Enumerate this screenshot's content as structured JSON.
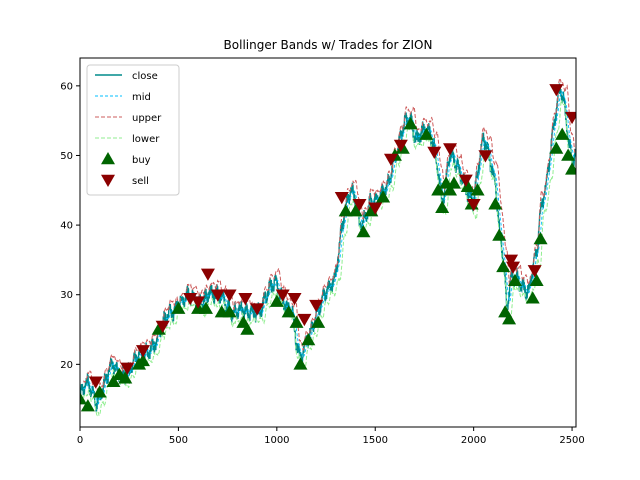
{
  "chart_data": {
    "type": "line",
    "title": "Bollinger Bands w/ Trades for ZION",
    "xlabel": "",
    "ylabel": "",
    "xlim": [
      0,
      2520
    ],
    "ylim": [
      11,
      64
    ],
    "x_ticks": [
      0,
      500,
      1000,
      1500,
      2000,
      2500
    ],
    "y_ticks": [
      20,
      30,
      40,
      50,
      60
    ],
    "legend": {
      "placement": "top-left",
      "entries": [
        "close",
        "mid",
        "upper",
        "lower",
        "buy",
        "sell"
      ]
    },
    "colors": {
      "close": "#008b8b",
      "mid": "#00bfff",
      "upper": "#cd5c5c",
      "lower": "#90ee90",
      "buy": "#006400",
      "sell": "#8b0000"
    },
    "close_anchors": [
      [
        0,
        15.5
      ],
      [
        40,
        16.5
      ],
      [
        80,
        15
      ],
      [
        120,
        17.5
      ],
      [
        160,
        19
      ],
      [
        200,
        18.5
      ],
      [
        240,
        19.5
      ],
      [
        280,
        20
      ],
      [
        320,
        21
      ],
      [
        360,
        23
      ],
      [
        400,
        24.5
      ],
      [
        440,
        26
      ],
      [
        480,
        28
      ],
      [
        500,
        30
      ],
      [
        540,
        29.5
      ],
      [
        580,
        28.5
      ],
      [
        620,
        29.5
      ],
      [
        650,
        31
      ],
      [
        680,
        29.5
      ],
      [
        720,
        29
      ],
      [
        760,
        28.5
      ],
      [
        800,
        28
      ],
      [
        840,
        26.5
      ],
      [
        880,
        28
      ],
      [
        920,
        28.5
      ],
      [
        960,
        30
      ],
      [
        1000,
        31.5
      ],
      [
        1040,
        29.5
      ],
      [
        1080,
        27
      ],
      [
        1100,
        22
      ],
      [
        1120,
        20
      ],
      [
        1150,
        24
      ],
      [
        1180,
        26
      ],
      [
        1210,
        27.5
      ],
      [
        1240,
        29
      ],
      [
        1270,
        31
      ],
      [
        1300,
        34
      ],
      [
        1330,
        40
      ],
      [
        1360,
        43
      ],
      [
        1380,
        44
      ],
      [
        1400,
        43.5
      ],
      [
        1420,
        41
      ],
      [
        1440,
        41.5
      ],
      [
        1470,
        43
      ],
      [
        1500,
        42.5
      ],
      [
        1530,
        44
      ],
      [
        1560,
        46.5
      ],
      [
        1590,
        49
      ],
      [
        1620,
        51
      ],
      [
        1650,
        54
      ],
      [
        1680,
        55.5
      ],
      [
        1710,
        53
      ],
      [
        1740,
        53.5
      ],
      [
        1770,
        52.5
      ],
      [
        1800,
        51
      ],
      [
        1820,
        48.5
      ],
      [
        1840,
        43.5
      ],
      [
        1860,
        47
      ],
      [
        1880,
        50
      ],
      [
        1900,
        48.5
      ],
      [
        1920,
        47.5
      ],
      [
        1950,
        46.5
      ],
      [
        1980,
        45
      ],
      [
        2000,
        43.5
      ],
      [
        2020,
        47
      ],
      [
        2050,
        52
      ],
      [
        2080,
        50
      ],
      [
        2110,
        47
      ],
      [
        2130,
        40
      ],
      [
        2150,
        35
      ],
      [
        2170,
        27
      ],
      [
        2190,
        32
      ],
      [
        2220,
        33
      ],
      [
        2250,
        32
      ],
      [
        2280,
        30
      ],
      [
        2300,
        33
      ],
      [
        2320,
        35
      ],
      [
        2340,
        42
      ],
      [
        2370,
        47
      ],
      [
        2400,
        53
      ],
      [
        2420,
        56
      ],
      [
        2440,
        59
      ],
      [
        2460,
        57
      ],
      [
        2480,
        53
      ],
      [
        2500,
        50
      ],
      [
        2515,
        51
      ]
    ],
    "buy_points": [
      [
        0,
        15
      ],
      [
        40,
        14
      ],
      [
        100,
        16
      ],
      [
        170,
        17.5
      ],
      [
        200,
        18.5
      ],
      [
        230,
        18
      ],
      [
        300,
        20
      ],
      [
        320,
        20.5
      ],
      [
        400,
        25
      ],
      [
        500,
        28
      ],
      [
        600,
        28
      ],
      [
        640,
        28
      ],
      [
        720,
        27.5
      ],
      [
        760,
        27.5
      ],
      [
        830,
        26
      ],
      [
        850,
        25
      ],
      [
        1000,
        29
      ],
      [
        1060,
        27.5
      ],
      [
        1100,
        26
      ],
      [
        1120,
        20
      ],
      [
        1160,
        23.5
      ],
      [
        1210,
        26
      ],
      [
        1350,
        42
      ],
      [
        1400,
        42
      ],
      [
        1440,
        39
      ],
      [
        1480,
        42
      ],
      [
        1540,
        44
      ],
      [
        1600,
        50
      ],
      [
        1640,
        51
      ],
      [
        1680,
        54.5
      ],
      [
        1760,
        53
      ],
      [
        1820,
        45
      ],
      [
        1840,
        42.5
      ],
      [
        1860,
        46
      ],
      [
        1880,
        45
      ],
      [
        1900,
        46
      ],
      [
        1970,
        45.5
      ],
      [
        1990,
        43
      ],
      [
        2020,
        45
      ],
      [
        2110,
        43
      ],
      [
        2130,
        38.5
      ],
      [
        2150,
        34
      ],
      [
        2160,
        27.5
      ],
      [
        2180,
        26.5
      ],
      [
        2210,
        32
      ],
      [
        2300,
        29.5
      ],
      [
        2320,
        32
      ],
      [
        2340,
        38
      ],
      [
        2420,
        51
      ],
      [
        2450,
        53
      ],
      [
        2480,
        50
      ],
      [
        2500,
        48
      ]
    ],
    "sell_points": [
      [
        80,
        17.5
      ],
      [
        240,
        19.5
      ],
      [
        320,
        22
      ],
      [
        420,
        25.5
      ],
      [
        560,
        29.5
      ],
      [
        600,
        29
      ],
      [
        650,
        33
      ],
      [
        700,
        30
      ],
      [
        760,
        30
      ],
      [
        840,
        29.5
      ],
      [
        900,
        28
      ],
      [
        1030,
        30
      ],
      [
        1090,
        29.5
      ],
      [
        1140,
        26.5
      ],
      [
        1200,
        28.5
      ],
      [
        1330,
        44
      ],
      [
        1420,
        43
      ],
      [
        1500,
        42.5
      ],
      [
        1580,
        49.5
      ],
      [
        1630,
        51.5
      ],
      [
        1800,
        50.5
      ],
      [
        1880,
        51
      ],
      [
        1960,
        46.5
      ],
      [
        2000,
        43
      ],
      [
        2060,
        50
      ],
      [
        2190,
        35
      ],
      [
        2200,
        34
      ],
      [
        2310,
        33.5
      ],
      [
        2420,
        59.5
      ],
      [
        2500,
        55.5
      ]
    ]
  }
}
